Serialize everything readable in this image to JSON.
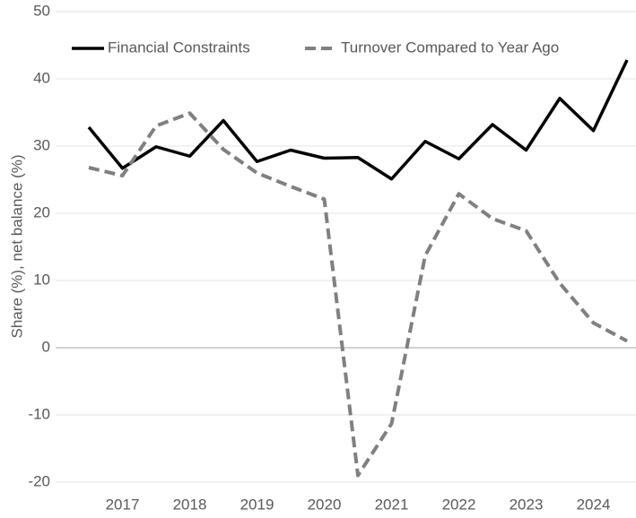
{
  "chart_data": {
    "type": "line",
    "y_label": "Share (%), net balance (%)",
    "categories": [
      null,
      "2017",
      null,
      "2018",
      null,
      "2019",
      null,
      "2020",
      null,
      "2021",
      null,
      "2022",
      null,
      "2023",
      null,
      "2024",
      null
    ],
    "series": [
      {
        "name": "Financial Constraints",
        "color": "#000000",
        "dash": false,
        "values": [
          32.8,
          26.7,
          29.9,
          28.5,
          33.8,
          27.7,
          29.4,
          28.2,
          28.3,
          25.1,
          30.7,
          28.1,
          33.2,
          29.4,
          37.1,
          32.3,
          42.8
        ]
      },
      {
        "name": "Turnover Compared to Year Ago",
        "color": "#808080",
        "dash": true,
        "values": [
          26.8,
          25.6,
          33.0,
          34.9,
          29.5,
          26.0,
          24.0,
          22.1,
          -19.0,
          -11.3,
          13.7,
          22.9,
          19.2,
          17.4,
          9.6,
          3.7,
          1.0
        ]
      }
    ],
    "ylim": [
      -20,
      50
    ],
    "yticks": [
      -20,
      -10,
      0,
      10,
      20,
      30,
      40,
      50
    ],
    "grid": true,
    "legend": "top"
  }
}
